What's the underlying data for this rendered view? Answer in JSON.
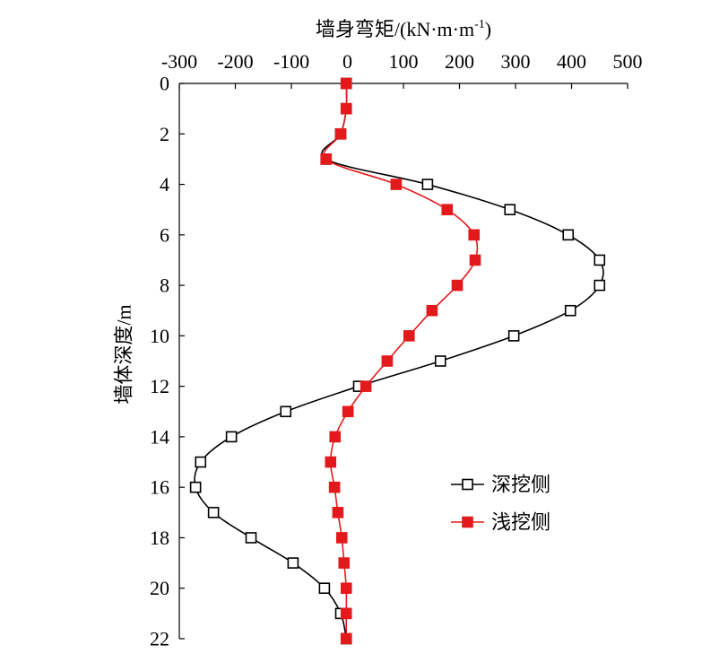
{
  "chart_data": {
    "type": "line",
    "xlabel": {
      "text": "墙身弯矩/(kN·m·m",
      "superscript": "-1",
      "suffix": ")"
    },
    "ylabel": "墙体深度/m",
    "x_axis_position": "top",
    "y_inverted": true,
    "xlim": [
      -300,
      500
    ],
    "ylim": [
      0,
      22
    ],
    "xticks": [
      -300,
      -200,
      -100,
      0,
      100,
      200,
      300,
      400,
      500
    ],
    "yticks": [
      0,
      2,
      4,
      6,
      8,
      10,
      12,
      14,
      16,
      18,
      20,
      22
    ],
    "grid": false,
    "legend_position": "right",
    "depth": [
      0,
      1,
      2,
      3,
      4,
      5,
      6,
      7,
      8,
      9,
      10,
      11,
      12,
      13,
      14,
      15,
      16,
      17,
      18,
      19,
      20,
      21,
      22
    ],
    "series": [
      {
        "name": "深挖侧",
        "color": "#000000",
        "marker": "open-square",
        "moment": [
          -2,
          -2,
          -12,
          -38,
          143,
          290,
          394,
          450,
          450,
          398,
          297,
          166,
          20,
          -110,
          -207,
          -262,
          -271,
          -239,
          -172,
          -97,
          -41,
          -12,
          -2
        ]
      },
      {
        "name": "浅挖侧",
        "color": "#e31a1c",
        "marker": "filled-square",
        "moment": [
          -2,
          -2,
          -12,
          -38,
          87,
          178,
          226,
          228,
          196,
          151,
          110,
          71,
          33,
          1,
          -22,
          -30,
          -23,
          -17,
          -10,
          -6,
          -2,
          -2,
          -2
        ]
      }
    ]
  }
}
